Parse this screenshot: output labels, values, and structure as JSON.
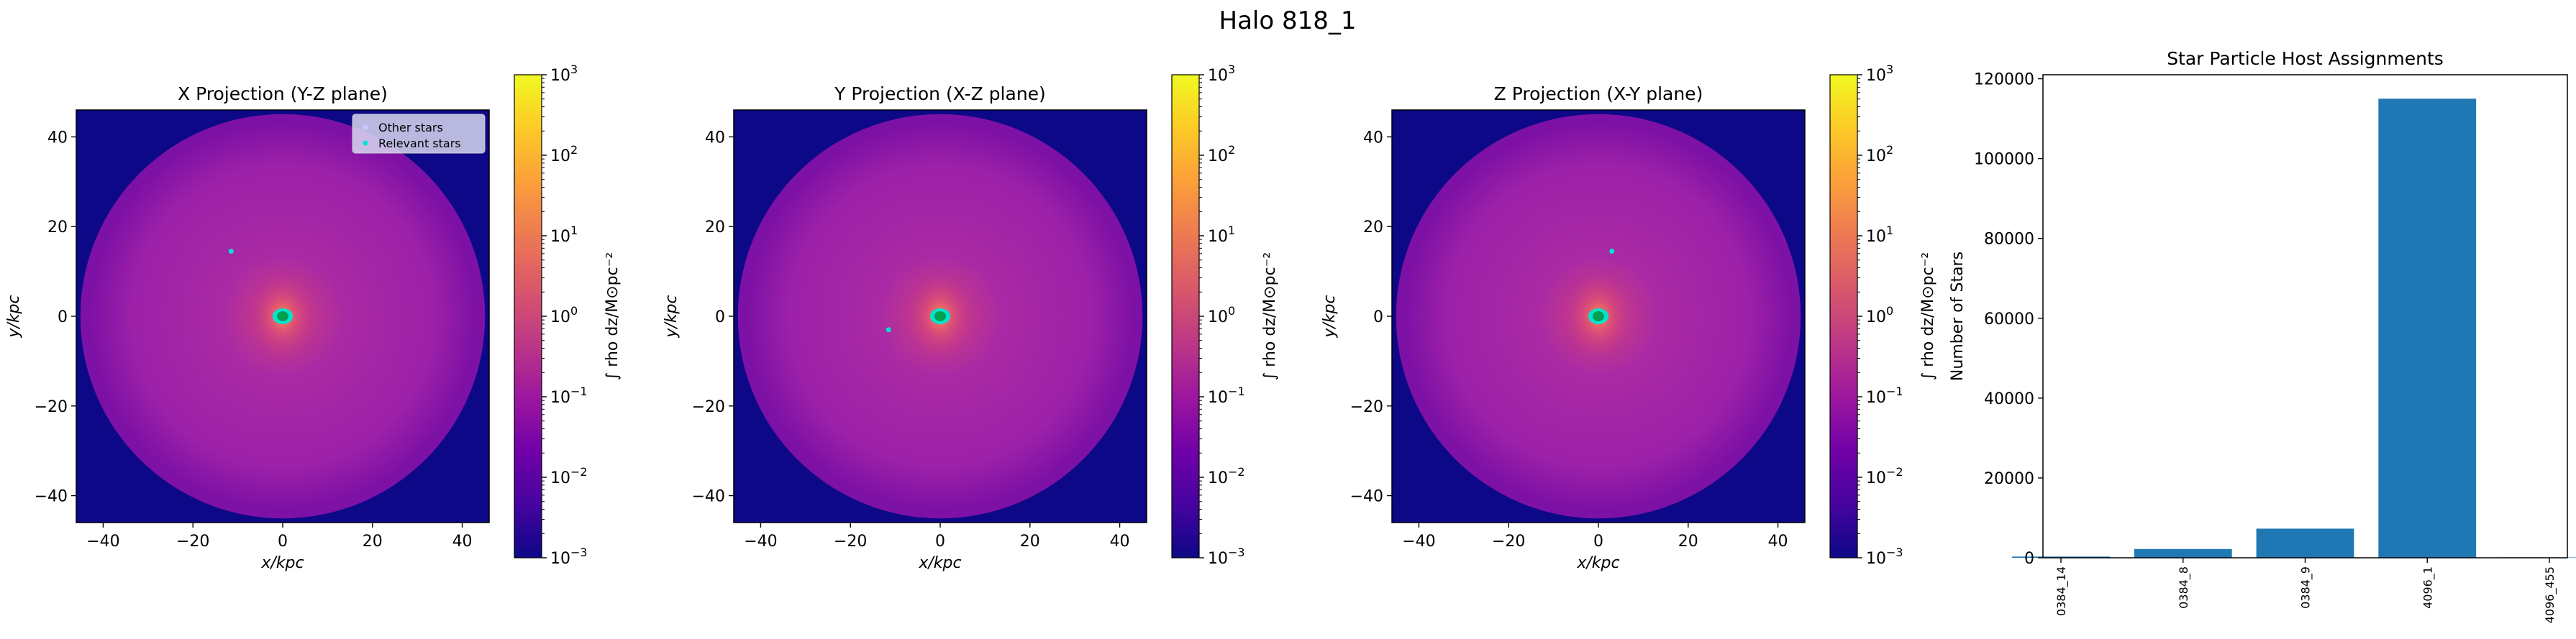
{
  "suptitle": "Halo 818_1",
  "panels": [
    {
      "title": "X Projection (Y-Z plane)",
      "xlabel": "x/kpc",
      "ylabel": "y/kpc",
      "colorbar_label": "∫ rho dz/M⊙pc⁻²",
      "show_legend": true,
      "relevant_stars": [
        [
          0.0,
          0.0
        ],
        [
          -11.5,
          14.5
        ]
      ]
    },
    {
      "title": "Y Projection (X-Z plane)",
      "xlabel": "x/kpc",
      "ylabel": "y/kpc",
      "colorbar_label": "∫ rho dz/M⊙pc⁻²",
      "show_legend": false,
      "relevant_stars": [
        [
          0.0,
          0.0
        ],
        [
          -11.5,
          -3.0
        ]
      ]
    },
    {
      "title": "Z Projection (X-Y plane)",
      "xlabel": "x/kpc",
      "ylabel": "y/kpc",
      "colorbar_label": "∫ rho dz/M⊙pc⁻²",
      "show_legend": false,
      "relevant_stars": [
        [
          0.0,
          0.0
        ],
        [
          3.0,
          14.5
        ]
      ]
    }
  ],
  "projection_axes": {
    "xlim": [
      -46,
      46
    ],
    "ylim": [
      -46,
      46
    ],
    "xticks": [
      -40,
      -20,
      0,
      20,
      40
    ],
    "yticks": [
      -40,
      -20,
      0,
      20,
      40
    ],
    "xtick_labels": [
      "−40",
      "−20",
      "0",
      "20",
      "40"
    ],
    "ytick_labels": [
      "−40",
      "−20",
      "0",
      "20",
      "40"
    ]
  },
  "colorbar": {
    "scale": "log",
    "range": [
      0.001,
      1000
    ],
    "cmap": "plasma",
    "tick_labels": [
      {
        "value": 1000,
        "base": "10",
        "exp": "3"
      },
      {
        "value": 100,
        "base": "10",
        "exp": "2"
      },
      {
        "value": 10,
        "base": "10",
        "exp": "1"
      },
      {
        "value": 1,
        "base": "10",
        "exp": "0"
      },
      {
        "value": 0.1,
        "base": "10",
        "exp": "−1"
      },
      {
        "value": 0.01,
        "base": "10",
        "exp": "−2"
      },
      {
        "value": 0.001,
        "base": "10",
        "exp": "−3"
      }
    ]
  },
  "legend": {
    "placement": "upper-right",
    "entries": [
      {
        "label": "Other stars",
        "color": "#c8c8ff"
      },
      {
        "label": "Relevant stars",
        "color": "#00e5d0"
      }
    ]
  },
  "colors": {
    "background_dark": "#0d0887",
    "disk_mid": "#9c20a8",
    "disk_edge": "#7e11a5",
    "center_warm": "#e85a63",
    "relevant_star": "#00e5d0",
    "core": "#00a050",
    "bar": "#1f77b4"
  },
  "chart_data": [
    {
      "type": "bar",
      "title": "Star Particle Host Assignments",
      "xlabel": "",
      "ylabel": "Number of Stars",
      "categories": [
        "0384_14",
        "0384_8",
        "0384_9",
        "4096_1",
        "4096_455"
      ],
      "values": [
        300,
        2200,
        7300,
        115000,
        100
      ],
      "ylim": [
        0,
        121000
      ],
      "yticks": [
        0,
        20000,
        40000,
        60000,
        80000,
        100000,
        120000
      ]
    }
  ]
}
